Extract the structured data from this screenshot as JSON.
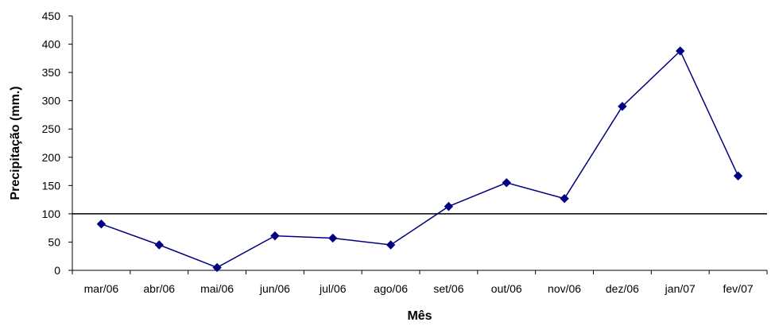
{
  "chart_data": {
    "type": "line",
    "title": "",
    "xlabel": "Mês",
    "ylabel": "Precipitação (mm.)",
    "categories": [
      "mar/06",
      "abr/06",
      "mai/06",
      "jun/06",
      "jul/06",
      "ago/06",
      "set/06",
      "out/06",
      "nov/06",
      "dez/06",
      "jan/07",
      "fev/07"
    ],
    "series": [
      {
        "values": [
          82,
          45,
          5,
          61,
          57,
          45,
          113,
          155,
          127,
          290,
          388,
          167
        ],
        "color": "#000080",
        "marker": "diamond"
      }
    ],
    "ylim": [
      0,
      450
    ],
    "yticks": [
      0,
      50,
      100,
      150,
      200,
      250,
      300,
      350,
      400,
      450
    ],
    "reference_line": {
      "value": 100,
      "color": "#000000"
    },
    "grid": false,
    "legend": "none"
  }
}
